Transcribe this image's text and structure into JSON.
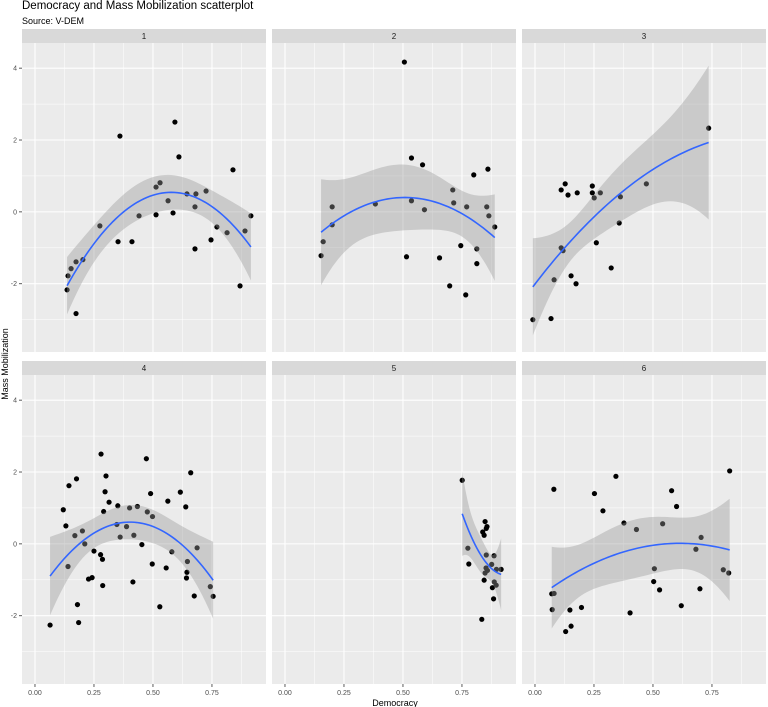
{
  "chart_data": {
    "type": "scatter",
    "title": "Democracy and Mass Mobilization scatterplot",
    "subtitle": "Source: V-DEM",
    "xlabel": "Democracy",
    "ylabel": "Mass Mobilization",
    "xlim": [
      -0.055,
      0.979
    ],
    "ylim": [
      -3.9,
      4.7
    ],
    "xticks": [
      0,
      0.25,
      0.5,
      0.75
    ],
    "xtick_labels": [
      "0.00",
      "0.25",
      "0.50",
      "0.75"
    ],
    "yticks": [
      -2,
      0,
      2,
      4
    ],
    "ytick_labels": [
      "-2",
      "0",
      "2",
      "4"
    ],
    "smooth": "quadratic fit with 95% confidence band",
    "colors": {
      "point": "#000000",
      "line": "#3366FF",
      "band": "#999999",
      "panel": "#EBEBEB",
      "strip": "#D9D9D9",
      "grid": "#FFFFFF"
    },
    "facets": [
      {
        "label": "1",
        "points": [
          [
            0.136,
            -2.17
          ],
          [
            0.14,
            -1.78
          ],
          [
            0.153,
            -1.58
          ],
          [
            0.174,
            -1.39
          ],
          [
            0.203,
            -1.33
          ],
          [
            0.174,
            -2.83
          ],
          [
            0.275,
            -0.39
          ],
          [
            0.36,
            2.11
          ],
          [
            0.352,
            -0.83
          ],
          [
            0.411,
            -0.83
          ],
          [
            0.441,
            -0.11
          ],
          [
            0.513,
            0.69
          ],
          [
            0.53,
            0.81
          ],
          [
            0.513,
            -0.08
          ],
          [
            0.564,
            0.31
          ],
          [
            0.593,
            2.5
          ],
          [
            0.61,
            1.53
          ],
          [
            0.585,
            -0.03
          ],
          [
            0.644,
            0.5
          ],
          [
            0.678,
            0.14
          ],
          [
            0.682,
            0.5
          ],
          [
            0.678,
            -1.03
          ],
          [
            0.725,
            0.58
          ],
          [
            0.746,
            -0.78
          ],
          [
            0.771,
            -0.42
          ],
          [
            0.814,
            -0.58
          ],
          [
            0.839,
            1.17
          ],
          [
            0.869,
            -2.06
          ],
          [
            0.89,
            -0.53
          ],
          [
            0.915,
            -0.11
          ]
        ]
      },
      {
        "label": "2",
        "points": [
          [
            0.506,
            4.17
          ],
          [
            0.536,
            1.5
          ],
          [
            0.583,
            1.31
          ],
          [
            0.86,
            1.19
          ],
          [
            0.8,
            1.03
          ],
          [
            0.711,
            0.61
          ],
          [
            0.2,
            0.14
          ],
          [
            0.383,
            0.22
          ],
          [
            0.536,
            0.31
          ],
          [
            0.591,
            0.06
          ],
          [
            0.715,
            0.25
          ],
          [
            0.77,
            0.14
          ],
          [
            0.855,
            0.14
          ],
          [
            0.864,
            -0.11
          ],
          [
            0.889,
            -0.42
          ],
          [
            0.2,
            -0.36
          ],
          [
            0.162,
            -0.83
          ],
          [
            0.153,
            -1.22
          ],
          [
            0.515,
            -1.25
          ],
          [
            0.655,
            -1.28
          ],
          [
            0.745,
            -0.94
          ],
          [
            0.813,
            -1.03
          ],
          [
            0.813,
            -1.44
          ],
          [
            0.698,
            -2.06
          ],
          [
            0.766,
            -2.31
          ]
        ]
      },
      {
        "label": "3",
        "points": [
          [
            -0.009,
            -3.0
          ],
          [
            0.068,
            -2.97
          ],
          [
            0.081,
            -1.89
          ],
          [
            0.111,
            -1.0
          ],
          [
            0.119,
            -1.08
          ],
          [
            0.153,
            -1.78
          ],
          [
            0.174,
            -2.0
          ],
          [
            0.26,
            -0.86
          ],
          [
            0.323,
            -1.56
          ],
          [
            0.357,
            -0.31
          ],
          [
            0.362,
            0.42
          ],
          [
            0.472,
            0.78
          ],
          [
            0.736,
            2.33
          ],
          [
            0.111,
            0.61
          ],
          [
            0.128,
            0.78
          ],
          [
            0.14,
            0.47
          ],
          [
            0.179,
            0.53
          ],
          [
            0.243,
            0.72
          ],
          [
            0.243,
            0.53
          ],
          [
            0.251,
            0.39
          ],
          [
            0.277,
            0.53
          ]
        ]
      },
      {
        "label": "4",
        "points": [
          [
            0.064,
            -2.26
          ],
          [
            0.12,
            0.95
          ],
          [
            0.131,
            0.5
          ],
          [
            0.144,
            1.62
          ],
          [
            0.176,
            1.81
          ],
          [
            0.14,
            -0.63
          ],
          [
            0.169,
            0.23
          ],
          [
            0.201,
            0.36
          ],
          [
            0.211,
            0.0
          ],
          [
            0.18,
            -1.69
          ],
          [
            0.185,
            -2.19
          ],
          [
            0.25,
            -0.2
          ],
          [
            0.227,
            -0.98
          ],
          [
            0.242,
            -0.94
          ],
          [
            0.278,
            -0.3
          ],
          [
            0.286,
            -0.43
          ],
          [
            0.287,
            -1.16
          ],
          [
            0.28,
            2.5
          ],
          [
            0.301,
            1.89
          ],
          [
            0.297,
            1.45
          ],
          [
            0.314,
            1.16
          ],
          [
            0.291,
            0.9
          ],
          [
            0.351,
            1.06
          ],
          [
            0.347,
            0.54
          ],
          [
            0.361,
            0.19
          ],
          [
            0.388,
            0.48
          ],
          [
            0.401,
            1.0
          ],
          [
            0.434,
            1.04
          ],
          [
            0.419,
            0.24
          ],
          [
            0.415,
            -1.06
          ],
          [
            0.453,
            -0.02
          ],
          [
            0.472,
            2.37
          ],
          [
            0.49,
            1.4
          ],
          [
            0.476,
            0.89
          ],
          [
            0.498,
            0.76
          ],
          [
            0.497,
            -0.56
          ],
          [
            0.529,
            -1.75
          ],
          [
            0.556,
            -0.67
          ],
          [
            0.563,
            1.19
          ],
          [
            0.58,
            -0.22
          ],
          [
            0.616,
            1.44
          ],
          [
            0.639,
            1.03
          ],
          [
            0.66,
            1.98
          ],
          [
            0.646,
            -0.49
          ],
          [
            0.644,
            -0.79
          ],
          [
            0.642,
            -0.95
          ],
          [
            0.675,
            -1.45
          ],
          [
            0.687,
            -0.11
          ],
          [
            0.743,
            -1.19
          ],
          [
            0.755,
            -1.46
          ]
        ]
      },
      {
        "label": "5",
        "points": [
          [
            0.751,
            1.77
          ],
          [
            0.775,
            -0.12
          ],
          [
            0.779,
            -0.56
          ],
          [
            0.834,
            -2.1
          ],
          [
            0.848,
            0.62
          ],
          [
            0.856,
            0.48
          ],
          [
            0.853,
            0.43
          ],
          [
            0.838,
            0.33
          ],
          [
            0.844,
            0.24
          ],
          [
            0.853,
            -0.31
          ],
          [
            0.886,
            -0.33
          ],
          [
            0.876,
            -0.57
          ],
          [
            0.852,
            -0.67
          ],
          [
            0.858,
            -0.74
          ],
          [
            0.848,
            -0.81
          ],
          [
            0.896,
            -0.71
          ],
          [
            0.916,
            -0.71
          ],
          [
            0.844,
            -1.01
          ],
          [
            0.887,
            -1.06
          ],
          [
            0.895,
            -1.15
          ],
          [
            0.879,
            -1.22
          ],
          [
            0.884,
            -1.53
          ]
        ]
      },
      {
        "label": "6",
        "points": [
          [
            0.071,
            -1.39
          ],
          [
            0.081,
            -1.38
          ],
          [
            0.073,
            -1.83
          ],
          [
            0.08,
            1.52
          ],
          [
            0.13,
            -2.44
          ],
          [
            0.148,
            -1.84
          ],
          [
            0.153,
            -2.29
          ],
          [
            0.197,
            -1.77
          ],
          [
            0.252,
            1.4
          ],
          [
            0.288,
            0.92
          ],
          [
            0.343,
            1.88
          ],
          [
            0.377,
            0.58
          ],
          [
            0.403,
            -1.92
          ],
          [
            0.43,
            0.4
          ],
          [
            0.506,
            -0.69
          ],
          [
            0.503,
            -1.05
          ],
          [
            0.528,
            -1.28
          ],
          [
            0.541,
            0.56
          ],
          [
            0.579,
            1.48
          ],
          [
            0.6,
            1.04
          ],
          [
            0.62,
            -1.72
          ],
          [
            0.682,
            -0.15
          ],
          [
            0.699,
            -1.25
          ],
          [
            0.704,
            0.18
          ],
          [
            0.798,
            -0.72
          ],
          [
            0.821,
            -0.81
          ],
          [
            0.825,
            2.03
          ]
        ]
      }
    ]
  }
}
